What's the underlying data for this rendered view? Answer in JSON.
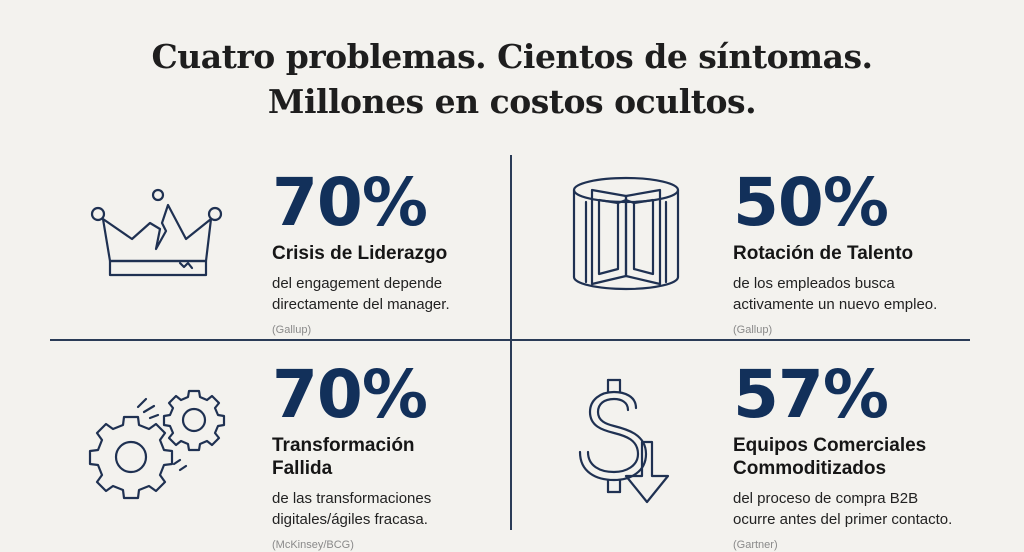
{
  "title": {
    "line1": "Cuatro problemas. Cientos de síntomas.",
    "line2": "Millones en costos ocultos."
  },
  "icon_color": "#1f3152",
  "stat_color": "#12305a",
  "quadrants": [
    {
      "icon": "broken-crown-icon",
      "stat": "70%",
      "category": "Crisis de Liderazgo",
      "desc_line1": "del engagement depende",
      "desc_line2": "directamente del manager.",
      "source": "(Gallup)"
    },
    {
      "icon": "revolving-door-icon",
      "stat": "50%",
      "category": "Rotación de Talento",
      "desc_line1": "de los empleados busca",
      "desc_line2": "activamente un nuevo empleo.",
      "source": "(Gallup)"
    },
    {
      "icon": "gears-icon",
      "stat": "70%",
      "category_line1": "Transformación",
      "category_line2": "Fallida",
      "desc_line1": "de las transformaciones",
      "desc_line2": "digitales/ágiles fracasa.",
      "source": "(McKinsey/BCG)"
    },
    {
      "icon": "dollar-down-arrow-icon",
      "stat": "57%",
      "category_line1": "Equipos Comerciales",
      "category_line2": "Commoditizados",
      "desc_line1": "del proceso de compra B2B",
      "desc_line2": "ocurre antes del primer contacto.",
      "source": "(Gartner)"
    }
  ]
}
